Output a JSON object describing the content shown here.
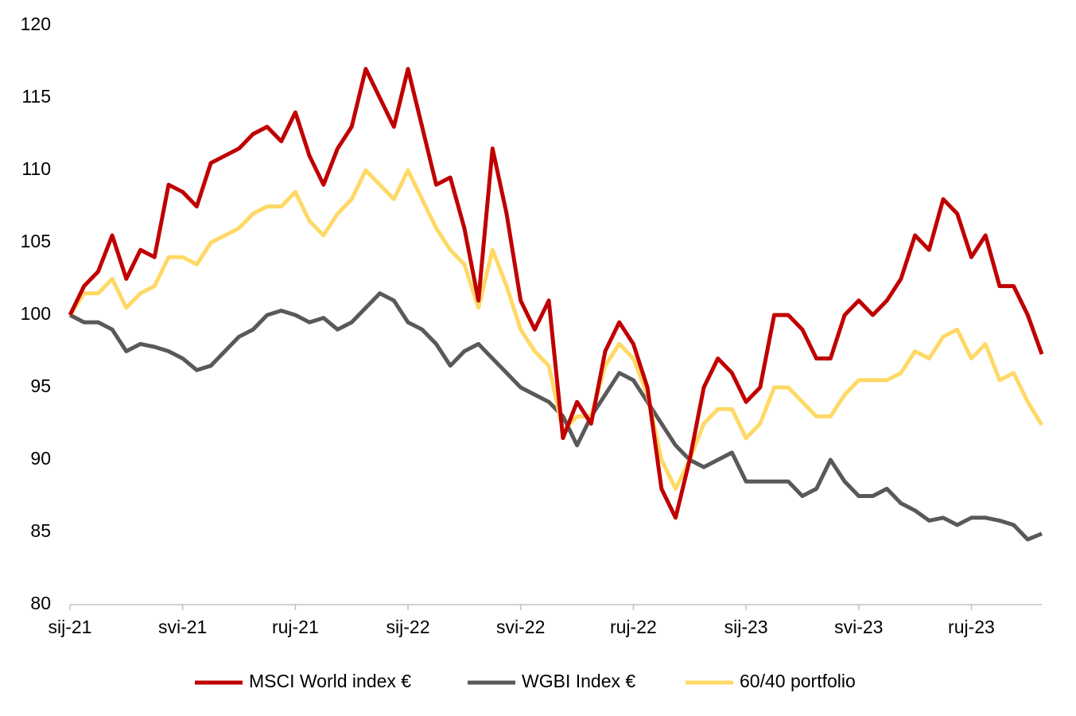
{
  "chart_data": {
    "type": "line",
    "categories": [
      "sij-21",
      null,
      null,
      null,
      null,
      null,
      null,
      null,
      "svi-21",
      null,
      null,
      null,
      null,
      null,
      null,
      null,
      "ruj-21",
      null,
      null,
      null,
      null,
      null,
      null,
      null,
      "sij-22",
      null,
      null,
      null,
      null,
      null,
      null,
      null,
      "svi-22",
      null,
      null,
      null,
      null,
      null,
      null,
      null,
      "ruj-22",
      null,
      null,
      null,
      null,
      null,
      null,
      null,
      "sij-23",
      null,
      null,
      null,
      null,
      null,
      null,
      null,
      "svi-23",
      null,
      null,
      null,
      null,
      null,
      null,
      null,
      "ruj-23",
      null,
      null,
      null,
      null,
      null
    ],
    "series": [
      {
        "name": "MSCI World index €",
        "color": "#c00000",
        "values": [
          100,
          102,
          103,
          105.5,
          102.5,
          104.5,
          104,
          109,
          108.5,
          107.5,
          110.5,
          111,
          111.5,
          112.5,
          113,
          112,
          114,
          111,
          109,
          111.5,
          113,
          117,
          115,
          113,
          117,
          113,
          109,
          109.5,
          106,
          101,
          111.5,
          107,
          101,
          99,
          101,
          91.5,
          94,
          92.5,
          97.5,
          99.5,
          98,
          95,
          88,
          86,
          90,
          95,
          97,
          96,
          94,
          95,
          100,
          100,
          99,
          97,
          97,
          100,
          101,
          100,
          101,
          102.5,
          105.5,
          104.5,
          108,
          107,
          104,
          105.5,
          102,
          102,
          100,
          97.3
        ]
      },
      {
        "name": "WGBI Index €",
        "color": "#595959",
        "values": [
          100,
          99.5,
          99.5,
          99,
          97.5,
          98,
          97.8,
          97.5,
          97,
          96.2,
          96.5,
          97.5,
          98.5,
          99,
          100,
          100.3,
          100,
          99.5,
          99.8,
          99,
          99.5,
          100.5,
          101.5,
          101,
          99.5,
          99,
          98,
          96.5,
          97.5,
          98,
          97,
          96,
          95,
          94.5,
          94,
          93,
          91,
          93,
          94.5,
          96,
          95.5,
          94,
          92.5,
          91,
          90,
          89.5,
          90,
          90.5,
          88.5,
          88.5,
          88.5,
          88.5,
          87.5,
          88,
          90,
          88.5,
          87.5,
          87.5,
          88,
          87,
          86.5,
          85.8,
          86,
          85.5,
          86,
          86,
          85.8,
          85.5,
          84.5,
          84.9
        ]
      },
      {
        "name": "60/40 portfolio",
        "color": "#ffd966",
        "values": [
          100,
          101.5,
          101.5,
          102.5,
          100.5,
          101.5,
          102,
          104,
          104,
          103.5,
          105,
          105.5,
          106,
          107,
          107.5,
          107.5,
          108.5,
          106.5,
          105.5,
          107,
          108,
          110,
          109,
          108,
          110,
          108,
          106,
          104.5,
          103.5,
          100.5,
          104.5,
          102,
          99,
          97.5,
          96.5,
          92,
          93,
          93,
          96.5,
          98,
          97,
          94.5,
          90,
          88,
          90,
          92.5,
          93.5,
          93.5,
          91.5,
          92.5,
          95,
          95,
          94,
          93,
          93,
          94.5,
          95.5,
          95.5,
          95.5,
          96,
          97.5,
          97,
          98.5,
          99,
          97,
          98,
          95.5,
          96,
          94,
          92.4
        ]
      }
    ],
    "ylim": [
      80,
      120
    ],
    "yticks": [
      80,
      85,
      90,
      95,
      100,
      105,
      110,
      115,
      120
    ],
    "grid": false,
    "legend": "bottom"
  }
}
